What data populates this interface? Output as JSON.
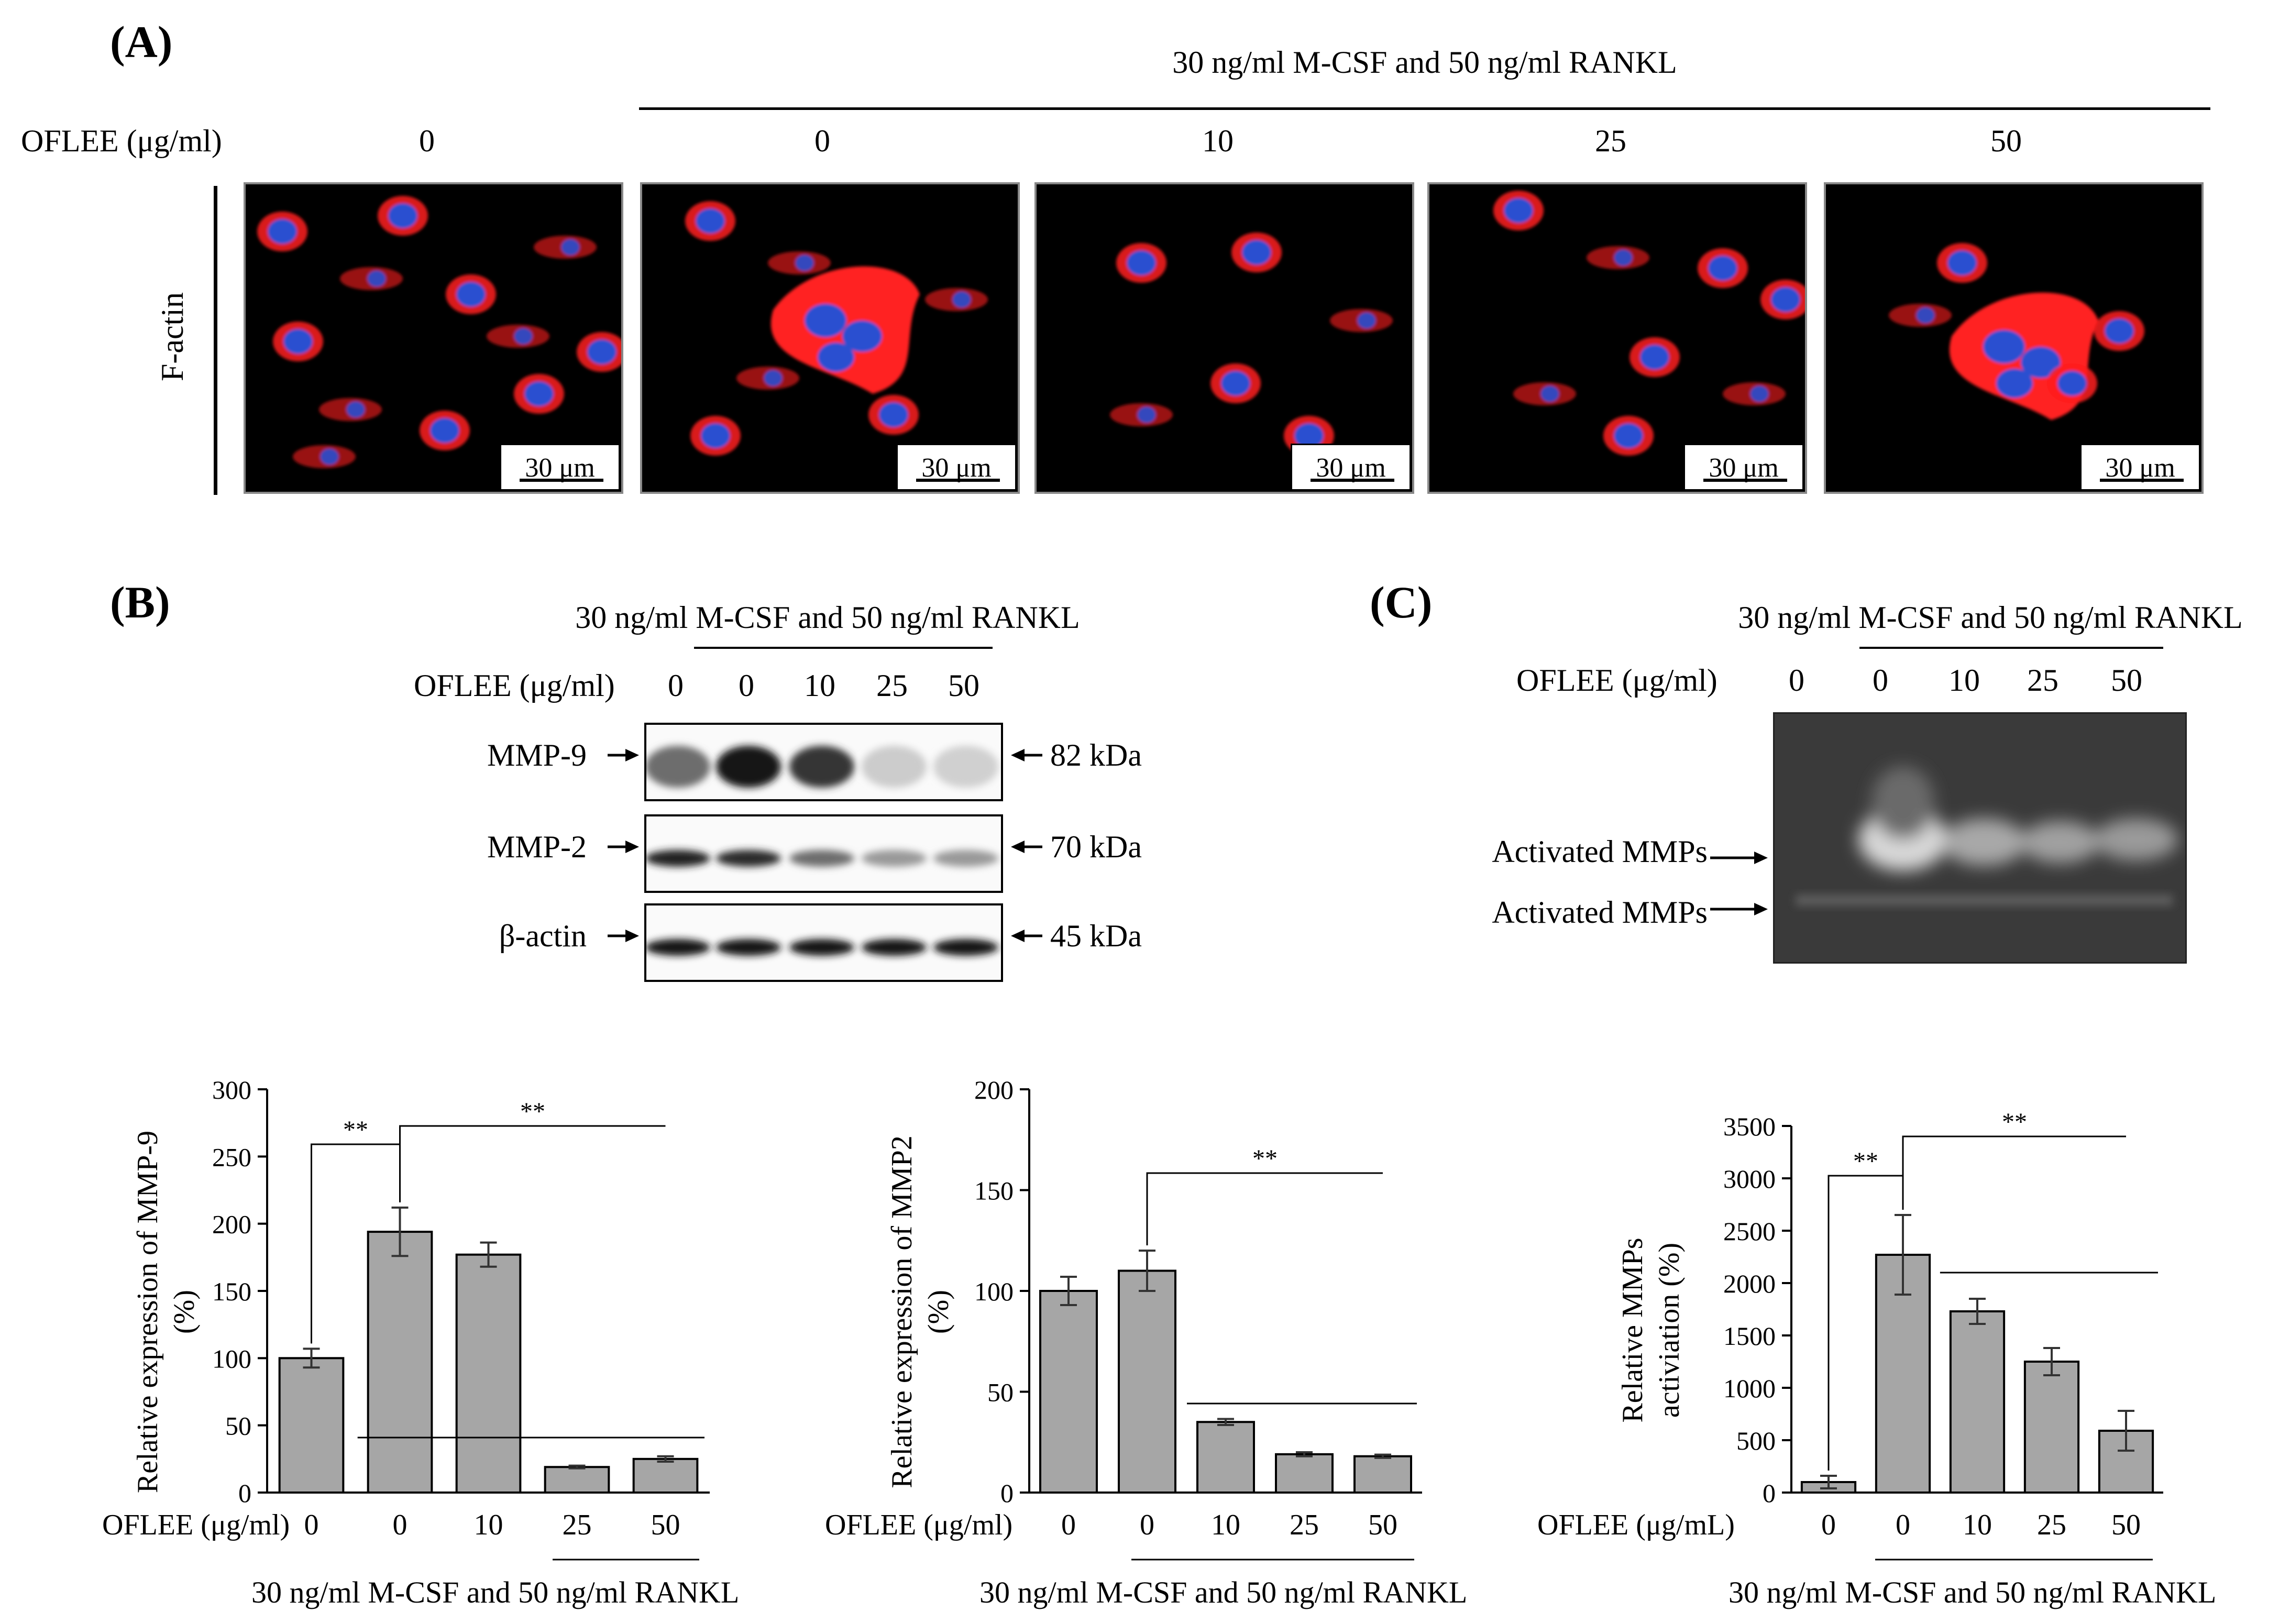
{
  "panel_a": {
    "label": "(A)",
    "treatment": "30 ng/ml M-CSF and 50 ng/ml RANKL",
    "dose_label": "OFLEE (μg/ml)",
    "doses": [
      "0",
      "0",
      "10",
      "25",
      "50"
    ],
    "row_label": "F-actin",
    "scale_bar": "30 μm",
    "colors": {
      "actin": "#ff2020",
      "nuclei": "#2a4fd0",
      "background": "#000000"
    }
  },
  "panel_b": {
    "label": "(B)",
    "treatment": "30 ng/ml M-CSF and 50 ng/ml RANKL",
    "dose_label": "OFLEE (μg/ml)",
    "doses": [
      "0",
      "0",
      "10",
      "25",
      "50"
    ],
    "bands": [
      {
        "name": "MMP-9",
        "size": "82 kDa",
        "intensity": [
          0.55,
          0.95,
          0.8,
          0.12,
          0.1
        ]
      },
      {
        "name": "MMP-2",
        "size": "70 kDa",
        "intensity": [
          0.9,
          0.85,
          0.55,
          0.35,
          0.35
        ]
      },
      {
        "name": "β-actin",
        "size": "45 kDa",
        "intensity": [
          0.95,
          0.95,
          0.95,
          0.95,
          0.95
        ]
      }
    ]
  },
  "panel_c": {
    "label": "(C)",
    "treatment": "30 ng/ml M-CSF and 50 ng/ml RANKL",
    "dose_label": "OFLEE (μg/ml)",
    "doses": [
      "0",
      "0",
      "10",
      "25",
      "50"
    ],
    "band_labels": [
      "Activated MMPs",
      "Activated MMPs"
    ]
  },
  "chart_data": [
    {
      "type": "bar",
      "categories": [
        "0",
        "0",
        "10",
        "25",
        "50"
      ],
      "values": [
        100,
        194,
        177,
        19,
        25
      ],
      "errors": [
        7,
        18,
        9,
        1,
        2
      ],
      "title": "",
      "xlabel": "OFLEE (μg/ml)",
      "ylabel": [
        "Relative expression of MMP-9",
        "(%)"
      ],
      "treatment": "30 ng/ml M-CSF and 50 ng/ml RANKL",
      "ylim": [
        0,
        300
      ],
      "yticks": [
        0,
        50,
        100,
        150,
        200,
        250,
        300
      ],
      "significance": [
        "**",
        "**"
      ],
      "bar_color": "#a6a6a6"
    },
    {
      "type": "bar",
      "categories": [
        "0",
        "0",
        "10",
        "25",
        "50"
      ],
      "values": [
        100,
        110,
        35,
        19,
        18
      ],
      "errors": [
        7,
        10,
        1.5,
        1,
        0.8
      ],
      "title": "",
      "xlabel": "OFLEE (μg/ml)",
      "ylabel": [
        "Relative expression of MMP2",
        "(%)"
      ],
      "treatment": "30 ng/ml M-CSF and 50 ng/ml RANKL",
      "ylim": [
        0,
        200
      ],
      "yticks": [
        0,
        50,
        100,
        150,
        200
      ],
      "significance": [
        "**"
      ],
      "bar_color": "#a6a6a6"
    },
    {
      "type": "bar",
      "categories": [
        "0",
        "0",
        "10",
        "25",
        "50"
      ],
      "values": [
        100,
        2270,
        1730,
        1250,
        590
      ],
      "errors": [
        60,
        380,
        120,
        130,
        190
      ],
      "title": "",
      "xlabel": "OFLEE (μg/mL)",
      "ylabel": [
        "Relative MMPs",
        "activiation (%)"
      ],
      "treatment": "30 ng/ml M-CSF and 50 ng/ml RANKL",
      "ylim": [
        0,
        3500
      ],
      "yticks": [
        0,
        500,
        1000,
        1500,
        2000,
        2500,
        3000,
        3500
      ],
      "significance": [
        "**",
        "**"
      ],
      "bar_color": "#a6a6a6"
    }
  ]
}
